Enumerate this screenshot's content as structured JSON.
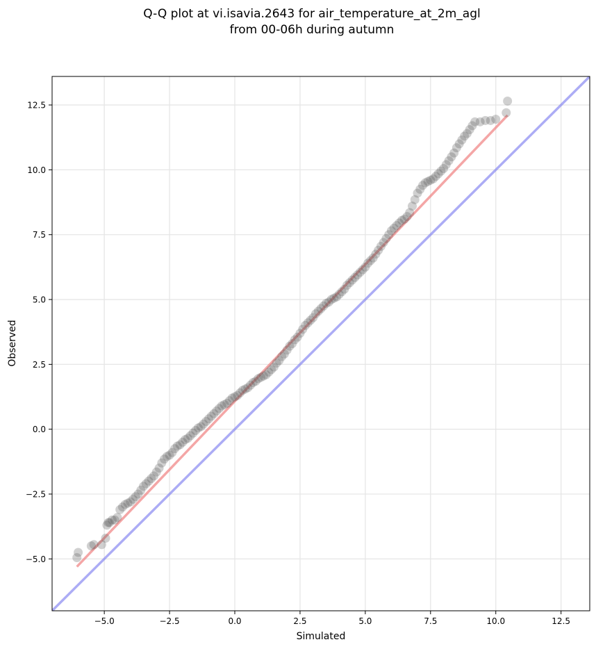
{
  "chart_data": {
    "type": "scatter",
    "title": "Q-Q plot at vi.isavia.2643 for air_temperature_at_2m_agl",
    "subtitle": "from 00-06h during autumn",
    "xlabel": "Simulated",
    "ylabel": "Observed",
    "xlim": [
      -7.0,
      13.6
    ],
    "ylim": [
      -7.0,
      13.6
    ],
    "xticks": [
      -5.0,
      -2.5,
      0.0,
      2.5,
      5.0,
      7.5,
      10.0,
      12.5
    ],
    "yticks": [
      -5.0,
      -2.5,
      0.0,
      2.5,
      5.0,
      7.5,
      10.0,
      12.5
    ],
    "xtick_labels": [
      "−5.0",
      "−2.5",
      "0.0",
      "2.5",
      "5.0",
      "7.5",
      "10.0",
      "12.5"
    ],
    "ytick_labels": [
      "−5.0",
      "−2.5",
      "0.0",
      "2.5",
      "5.0",
      "7.5",
      "10.0",
      "12.5"
    ],
    "grid": true,
    "colors": {
      "points": "#555555",
      "fit_line": "#f08080",
      "identity_line": "#8080f0",
      "grid": "#e6e6e6"
    },
    "identity_line": {
      "x": [
        -7.0,
        13.6
      ],
      "y": [
        -7.0,
        13.6
      ]
    },
    "fit_line": {
      "x": [
        -6.05,
        10.45
      ],
      "y": [
        -5.3,
        12.1
      ]
    },
    "points": {
      "x": [
        -6.05,
        -6.0,
        -5.5,
        -5.4,
        -5.1,
        -4.95,
        -4.9,
        -4.85,
        -4.8,
        -4.7,
        -4.6,
        -4.5,
        -4.4,
        -4.3,
        -4.2,
        -4.1,
        -4.0,
        -3.9,
        -3.8,
        -3.7,
        -3.6,
        -3.5,
        -3.4,
        -3.3,
        -3.2,
        -3.1,
        -3.0,
        -2.9,
        -2.8,
        -2.7,
        -2.6,
        -2.5,
        -2.4,
        -2.3,
        -2.2,
        -2.1,
        -2.0,
        -1.9,
        -1.8,
        -1.7,
        -1.6,
        -1.5,
        -1.4,
        -1.3,
        -1.2,
        -1.1,
        -1.0,
        -0.9,
        -0.8,
        -0.7,
        -0.6,
        -0.5,
        -0.4,
        -0.3,
        -0.2,
        -0.1,
        0.0,
        0.1,
        0.2,
        0.3,
        0.4,
        0.5,
        0.6,
        0.7,
        0.8,
        0.9,
        1.0,
        1.1,
        1.2,
        1.3,
        1.4,
        1.5,
        1.6,
        1.7,
        1.8,
        1.9,
        2.0,
        2.1,
        2.2,
        2.3,
        2.4,
        2.5,
        2.6,
        2.7,
        2.8,
        2.9,
        3.0,
        3.1,
        3.2,
        3.3,
        3.4,
        3.5,
        3.6,
        3.7,
        3.8,
        3.9,
        4.0,
        4.1,
        4.2,
        4.3,
        4.4,
        4.5,
        4.6,
        4.7,
        4.8,
        4.9,
        5.0,
        5.1,
        5.2,
        5.3,
        5.4,
        5.5,
        5.6,
        5.7,
        5.8,
        5.9,
        6.0,
        6.1,
        6.2,
        6.3,
        6.4,
        6.5,
        6.6,
        6.7,
        6.8,
        6.9,
        7.0,
        7.1,
        7.2,
        7.3,
        7.4,
        7.5,
        7.6,
        7.7,
        7.8,
        7.9,
        8.0,
        8.1,
        8.2,
        8.3,
        8.4,
        8.5,
        8.6,
        8.7,
        8.8,
        8.9,
        9.0,
        9.1,
        9.2,
        9.4,
        9.6,
        9.8,
        10.0,
        10.4,
        10.45
      ],
      "y": [
        -4.95,
        -4.75,
        -4.5,
        -4.45,
        -4.45,
        -4.2,
        -3.7,
        -3.6,
        -3.6,
        -3.5,
        -3.5,
        -3.4,
        -3.1,
        -3.0,
        -2.9,
        -2.85,
        -2.8,
        -2.7,
        -2.6,
        -2.5,
        -2.35,
        -2.2,
        -2.1,
        -2.0,
        -1.9,
        -1.8,
        -1.65,
        -1.5,
        -1.3,
        -1.15,
        -1.05,
        -1.0,
        -0.9,
        -0.75,
        -0.65,
        -0.6,
        -0.5,
        -0.4,
        -0.35,
        -0.25,
        -0.15,
        -0.05,
        0.05,
        0.1,
        0.2,
        0.3,
        0.4,
        0.5,
        0.6,
        0.7,
        0.8,
        0.9,
        0.95,
        1.0,
        1.1,
        1.2,
        1.25,
        1.3,
        1.4,
        1.5,
        1.55,
        1.6,
        1.7,
        1.8,
        1.85,
        1.95,
        2.0,
        2.05,
        2.1,
        2.2,
        2.3,
        2.4,
        2.55,
        2.65,
        2.8,
        2.9,
        3.05,
        3.2,
        3.3,
        3.45,
        3.55,
        3.7,
        3.85,
        4.0,
        4.1,
        4.2,
        4.3,
        4.45,
        4.55,
        4.65,
        4.75,
        4.85,
        4.9,
        5.0,
        5.05,
        5.1,
        5.2,
        5.3,
        5.4,
        5.55,
        5.65,
        5.75,
        5.85,
        5.95,
        6.05,
        6.15,
        6.25,
        6.4,
        6.5,
        6.6,
        6.75,
        6.9,
        7.05,
        7.2,
        7.35,
        7.5,
        7.65,
        7.75,
        7.85,
        7.95,
        8.05,
        8.1,
        8.2,
        8.35,
        8.6,
        8.85,
        9.1,
        9.25,
        9.4,
        9.5,
        9.55,
        9.6,
        9.65,
        9.75,
        9.85,
        9.95,
        10.05,
        10.2,
        10.35,
        10.5,
        10.65,
        10.85,
        11.0,
        11.15,
        11.3,
        11.4,
        11.55,
        11.7,
        11.85,
        11.85,
        11.9,
        11.9,
        11.95,
        12.2,
        12.65
      ]
    }
  }
}
